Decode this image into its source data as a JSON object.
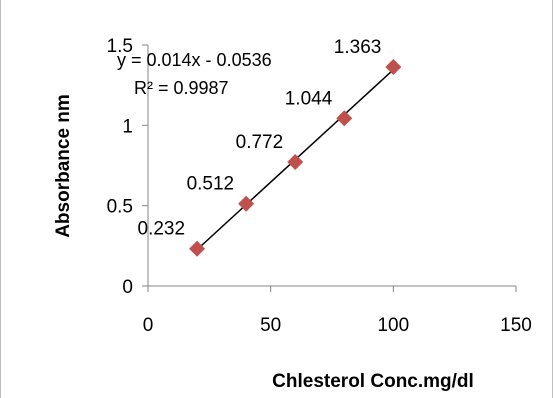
{
  "chart_data": {
    "type": "scatter",
    "title": "",
    "xlabel": "Chlesterol Conc.mg/dl",
    "ylabel": "Absorbance nm",
    "xlim": [
      0,
      150
    ],
    "ylim": [
      0,
      1.5
    ],
    "x_ticks": [
      0,
      50,
      100,
      150
    ],
    "y_ticks": [
      0,
      0.5,
      1,
      1.5
    ],
    "x_tick_labels": [
      "0",
      "50",
      "100",
      "150"
    ],
    "y_tick_labels": [
      "0",
      "0.5",
      "1",
      "1.5"
    ],
    "grid": false,
    "legend": "none",
    "series": [
      {
        "marker": "diamond",
        "color": "#c0504d",
        "x": [
          20,
          40,
          60,
          80,
          100
        ],
        "y": [
          0.232,
          0.512,
          0.772,
          1.044,
          1.363
        ],
        "labels": [
          "0.232",
          "0.512",
          "0.772",
          "1.044",
          "1.363"
        ]
      }
    ],
    "trendline": {
      "type": "linear",
      "slope": 0.014,
      "intercept": -0.0536,
      "x_range": [
        20,
        100
      ],
      "color": "#000000",
      "equation": "y = 0.014x - 0.0536",
      "r_squared": "R² = 0.9987"
    }
  }
}
